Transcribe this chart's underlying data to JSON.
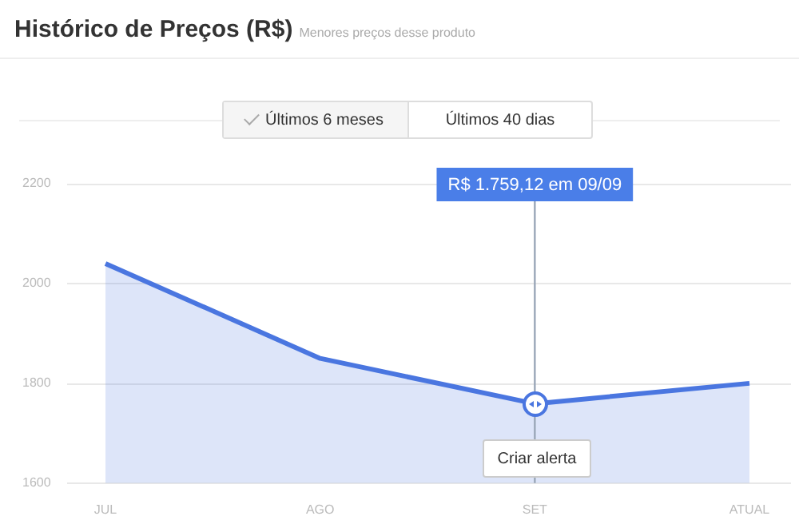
{
  "chart_data": {
    "type": "area",
    "title": "Histórico de Preços (R$)",
    "subtitle": "Menores preços desse produto",
    "categories": [
      "JUL",
      "AGO",
      "SET",
      "ATUAL"
    ],
    "series": [
      {
        "color": "#4a76e0",
        "values": [
          2040,
          1850,
          1759.12,
          1800
        ]
      }
    ],
    "ylim": [
      1600,
      2200
    ],
    "yticks": [
      1600,
      1800,
      2000,
      2200
    ],
    "grid": "y",
    "legend": false,
    "ref_lines": [
      {
        "axis": "x",
        "value": "SET",
        "color": "#9aa7b8"
      }
    ],
    "annotations": [
      "R$ 1.759,12 em 09/09",
      "Últimos 6 meses",
      "Últimos 40 dias",
      "Criar alerta"
    ]
  }
}
